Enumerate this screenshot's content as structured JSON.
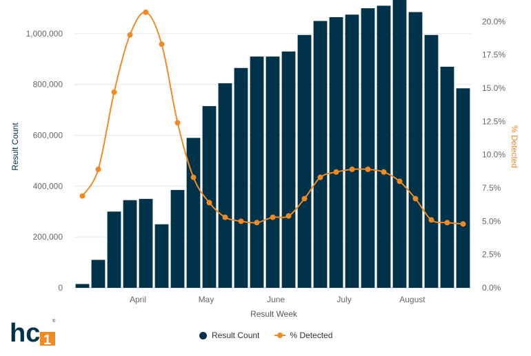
{
  "colors": {
    "bar": "#003349",
    "line": "#F08A24",
    "grid": "#e6e6e6",
    "logo_dark": "#003349",
    "logo_accent": "#F08A24"
  },
  "chart_data": {
    "type": "bar+line",
    "xlabel": "Result Week",
    "ylabel_left": "Result Count",
    "ylabel_right": "% Detected",
    "ylim_left": [
      0,
      1100000
    ],
    "ylim_right": [
      0,
      0.21
    ],
    "left_ticks": [
      "0",
      "200,000",
      "400,000",
      "600,000",
      "800,000",
      "1,000,000"
    ],
    "right_ticks": [
      "0.0%",
      "2.5%",
      "5.0%",
      "7.5%",
      "10.0%",
      "12.5%",
      "15.0%",
      "17.5%",
      "20.0%"
    ],
    "month_labels": [
      {
        "label": "April",
        "week_index": 3.5
      },
      {
        "label": "May",
        "week_index": 7.8
      },
      {
        "label": "June",
        "week_index": 12.2
      },
      {
        "label": "July",
        "week_index": 16.5
      },
      {
        "label": "August",
        "week_index": 20.8
      }
    ],
    "grid": true,
    "legend_position": "bottom",
    "series": [
      {
        "name": "Result Count",
        "type": "bar",
        "values": [
          15000,
          110000,
          300000,
          345000,
          350000,
          250000,
          385000,
          590000,
          715000,
          805000,
          865000,
          910000,
          910000,
          930000,
          995000,
          1050000,
          1065000,
          1075000,
          1100000,
          1110000,
          1150000,
          1085000,
          995000,
          870000,
          785000
        ]
      },
      {
        "name": "% Detected",
        "type": "line",
        "values": [
          0.069,
          0.089,
          0.147,
          0.19,
          0.207,
          0.183,
          0.124,
          0.083,
          0.064,
          0.053,
          0.05,
          0.049,
          0.053,
          0.054,
          0.067,
          0.083,
          0.087,
          0.089,
          0.089,
          0.087,
          0.08,
          0.067,
          0.051,
          0.049,
          0.048
        ]
      }
    ]
  },
  "legend": {
    "bar_label": "Result Count",
    "line_label": "% Detected"
  },
  "logo": {
    "text": "hc",
    "digit": "1",
    "mark": "®"
  }
}
